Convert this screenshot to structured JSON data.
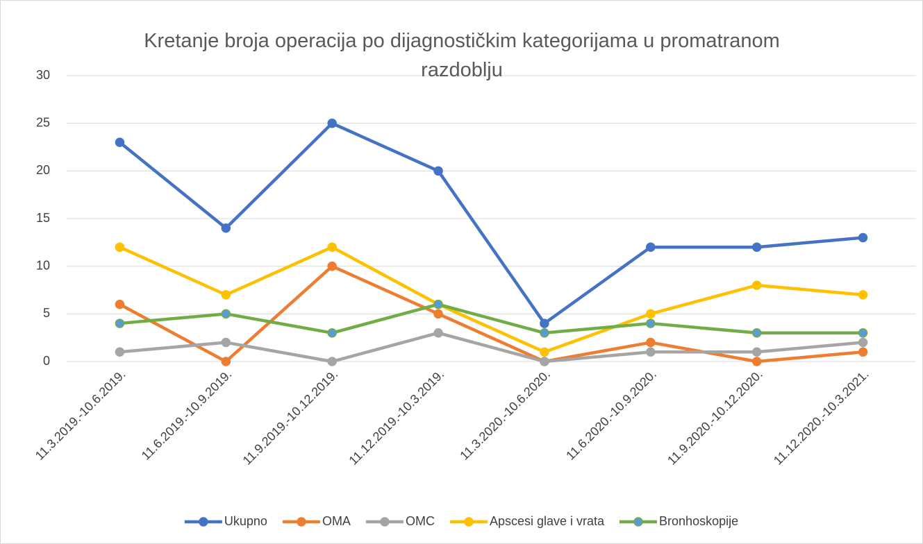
{
  "chart_data": {
    "type": "line",
    "title": "Kretanje broja operacija po dijagnostičkim kategorijama u promatranom razdoblju",
    "categories": [
      "11.3.2019.-10.6.2019.",
      "11.6.2019.-10.9.2019.",
      "11.9.2019.-10.12.2019.",
      "11.12.2019.-10.3.2019.",
      "11.3.2020.-10.6.2020.",
      "11.6.2020.-10.9.2020.",
      "11.9.2020.-10.12.2020.",
      "11.12.2020.-10.3.2021."
    ],
    "series": [
      {
        "name": "Ukupno",
        "color": "#4472c4",
        "marker_color": "#4472c4",
        "values": [
          23,
          14,
          25,
          20,
          4,
          12,
          12,
          13
        ]
      },
      {
        "name": "OMA",
        "color": "#ed7d31",
        "marker_color": "#ed7d31",
        "values": [
          6,
          0,
          10,
          5,
          0,
          2,
          0,
          1
        ]
      },
      {
        "name": "OMC",
        "color": "#a5a5a5",
        "marker_color": "#a5a5a5",
        "values": [
          1,
          2,
          0,
          3,
          0,
          1,
          1,
          2
        ]
      },
      {
        "name": "Apscesi glave i vrata",
        "color": "#ffc000",
        "marker_color": "#ffc000",
        "values": [
          12,
          7,
          12,
          6,
          1,
          5,
          8,
          7
        ]
      },
      {
        "name": "Bronhoskopije",
        "color": "#70ad47",
        "marker_color": "#5b9bd5",
        "values": [
          4,
          5,
          3,
          6,
          3,
          4,
          3,
          3
        ]
      }
    ],
    "ylim": [
      0,
      30
    ],
    "yticks": [
      0,
      5,
      10,
      15,
      20,
      25,
      30
    ],
    "grid": true,
    "legend": "bottom"
  }
}
